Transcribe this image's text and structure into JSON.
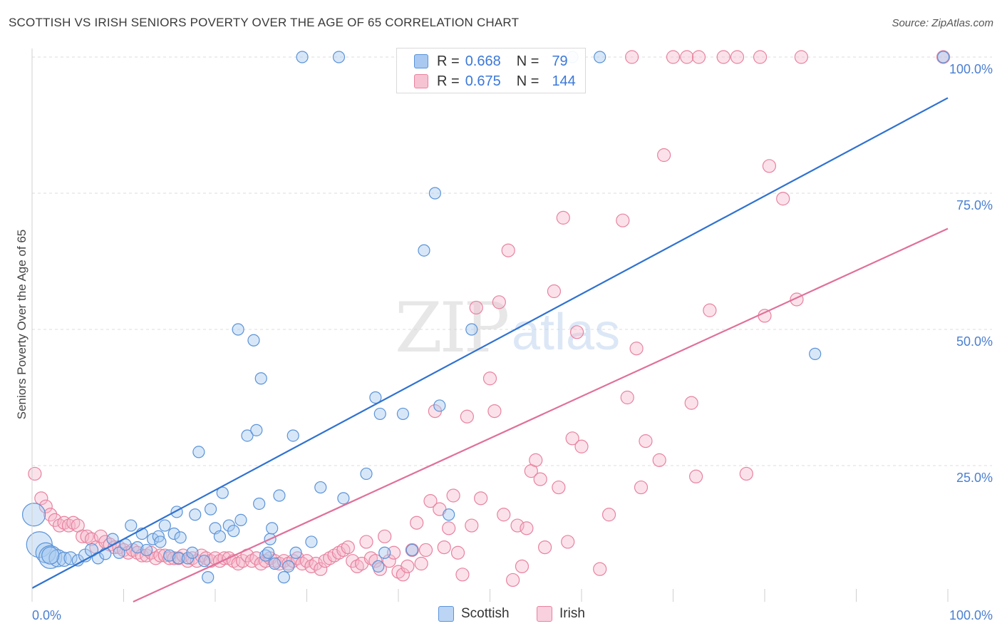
{
  "title": "SCOTTISH VS IRISH SENIORS POVERTY OVER THE AGE OF 65 CORRELATION CHART",
  "source": "Source: ZipAtlas.com",
  "watermark": {
    "zip": "ZIP",
    "atlas": "atlas"
  },
  "colors": {
    "scottish_fill": "#a9c9f0",
    "scottish_stroke": "#5a93d8",
    "scottish_line": "#2f72d0",
    "irish_fill": "#f6b7ca",
    "irish_stroke": "#e8829f",
    "irish_line": "#e0709a",
    "axis_label": "#4a7fd0"
  },
  "legend": {
    "scottish": {
      "r_label": "R =",
      "r_value": "0.668",
      "n_label": "N =",
      "n_value": "79"
    },
    "irish": {
      "r_label": "R =",
      "r_value": "0.675",
      "n_label": "N =",
      "n_value": "144"
    }
  },
  "bottom_legend": {
    "scottish": "Scottish",
    "irish": "Irish"
  },
  "chart_data": {
    "type": "scatter",
    "title": "SCOTTISH VS IRISH SENIORS POVERTY OVER THE AGE OF 65 CORRELATION CHART",
    "xlabel": "",
    "ylabel": "Seniors Poverty Over the Age of 65",
    "xlim": [
      0,
      100
    ],
    "ylim": [
      0,
      102
    ],
    "x_tick_labels": {
      "left": "0.0%",
      "right": "100.0%"
    },
    "y_ticks": [
      25,
      50,
      75,
      100
    ],
    "y_tick_labels": [
      "25.0%",
      "50.0%",
      "75.0%",
      "100.0%"
    ],
    "grid": true,
    "series": [
      {
        "name": "Scottish",
        "trend": {
          "x": [
            0,
            100
          ],
          "y": [
            2.5,
            92.5
          ]
        },
        "points": [
          [
            0.2,
            16.0,
            16
          ],
          [
            0.8,
            10.5,
            18
          ],
          [
            1.5,
            9.0,
            14
          ],
          [
            2.0,
            8.2,
            16
          ],
          [
            2.8,
            8.0,
            12
          ],
          [
            3.5,
            7.8,
            10
          ],
          [
            4.2,
            8.0,
            9
          ],
          [
            5.0,
            7.6,
            8
          ],
          [
            5.8,
            8.5,
            9
          ],
          [
            6.5,
            9.5,
            9
          ],
          [
            7.2,
            8.0,
            8
          ],
          [
            8.0,
            8.8,
            8
          ],
          [
            8.8,
            11.5,
            8
          ],
          [
            9.5,
            9.0,
            8
          ],
          [
            10.2,
            10.5,
            8
          ],
          [
            10.8,
            14.0,
            8
          ],
          [
            11.5,
            10.0,
            8
          ],
          [
            12.0,
            12.5,
            8
          ],
          [
            12.5,
            9.5,
            8
          ],
          [
            13.2,
            11.5,
            8
          ],
          [
            13.8,
            12.0,
            8
          ],
          [
            14.0,
            11.0,
            8
          ],
          [
            14.5,
            14.0,
            8
          ],
          [
            15.0,
            8.5,
            8
          ],
          [
            15.5,
            12.5,
            8
          ],
          [
            16.0,
            8.0,
            8
          ],
          [
            16.2,
            11.8,
            8
          ],
          [
            17.0,
            8.0,
            8
          ],
          [
            17.5,
            9.0,
            8
          ],
          [
            15.8,
            16.5,
            8
          ],
          [
            17.8,
            16.0,
            8
          ],
          [
            18.2,
            27.5,
            8
          ],
          [
            18.8,
            7.5,
            8
          ],
          [
            19.2,
            4.5,
            8
          ],
          [
            19.5,
            17.0,
            8
          ],
          [
            20.0,
            13.5,
            8
          ],
          [
            20.5,
            12.0,
            8
          ],
          [
            20.8,
            20.0,
            8
          ],
          [
            21.5,
            14.0,
            8
          ],
          [
            22.0,
            13.0,
            8
          ],
          [
            22.5,
            50.0,
            8
          ],
          [
            22.8,
            15.0,
            8
          ],
          [
            23.5,
            30.5,
            8
          ],
          [
            24.2,
            48.0,
            8
          ],
          [
            24.5,
            31.5,
            8
          ],
          [
            24.8,
            18.0,
            8
          ],
          [
            25.0,
            41.0,
            8
          ],
          [
            25.5,
            8.5,
            8
          ],
          [
            25.8,
            9.0,
            8
          ],
          [
            26.0,
            11.5,
            8
          ],
          [
            26.2,
            13.5,
            8
          ],
          [
            26.5,
            7.0,
            8
          ],
          [
            27.0,
            19.5,
            8
          ],
          [
            27.5,
            4.5,
            8
          ],
          [
            28.0,
            6.5,
            8
          ],
          [
            28.5,
            30.5,
            8
          ],
          [
            28.8,
            9.0,
            8
          ],
          [
            29.5,
            100.0,
            8
          ],
          [
            30.5,
            11.0,
            8
          ],
          [
            31.5,
            21.0,
            8
          ],
          [
            33.5,
            100.0,
            8
          ],
          [
            34.0,
            19.0,
            8
          ],
          [
            36.5,
            23.5,
            8
          ],
          [
            37.5,
            37.5,
            8
          ],
          [
            37.8,
            6.5,
            8
          ],
          [
            38.0,
            34.5,
            8
          ],
          [
            38.5,
            9.0,
            8
          ],
          [
            40.5,
            34.5,
            8
          ],
          [
            41.5,
            9.5,
            8
          ],
          [
            42.8,
            64.5,
            8
          ],
          [
            44.0,
            75.0,
            8
          ],
          [
            44.5,
            36.0,
            8
          ],
          [
            45.5,
            16.0,
            8
          ],
          [
            48.0,
            50.0,
            8
          ],
          [
            59.0,
            100.0,
            8
          ],
          [
            62.0,
            100.0,
            8
          ],
          [
            85.5,
            45.5,
            8
          ],
          [
            99.5,
            100.0,
            8
          ],
          [
            2.0,
            8.5,
            12
          ]
        ]
      },
      {
        "name": "Irish",
        "trend": {
          "x": [
            0,
            100
          ],
          "y": [
            -8.5,
            68.5
          ]
        },
        "points": [
          [
            0.3,
            23.5,
            9
          ],
          [
            1.0,
            19.0,
            9
          ],
          [
            1.5,
            17.5,
            9
          ],
          [
            2.0,
            16.0,
            9
          ],
          [
            2.5,
            15.0,
            9
          ],
          [
            3.0,
            14.0,
            9
          ],
          [
            3.5,
            14.5,
            9
          ],
          [
            4.0,
            14.0,
            9
          ],
          [
            4.5,
            14.5,
            9
          ],
          [
            5.0,
            14.0,
            9
          ],
          [
            5.5,
            12.0,
            9
          ],
          [
            6.0,
            12.0,
            9
          ],
          [
            6.5,
            11.5,
            9
          ],
          [
            7.0,
            10.0,
            9
          ],
          [
            7.5,
            12.0,
            9
          ],
          [
            8.0,
            11.0,
            9
          ],
          [
            8.5,
            10.5,
            9
          ],
          [
            9.0,
            10.0,
            9
          ],
          [
            9.5,
            10.0,
            9
          ],
          [
            10.0,
            9.5,
            9
          ],
          [
            10.5,
            9.0,
            9
          ],
          [
            11.0,
            9.5,
            9
          ],
          [
            11.5,
            9.0,
            9
          ],
          [
            12.0,
            8.5,
            9
          ],
          [
            12.5,
            8.5,
            9
          ],
          [
            13.0,
            9.0,
            9
          ],
          [
            13.5,
            8.0,
            9
          ],
          [
            14.0,
            8.5,
            9
          ],
          [
            14.5,
            8.5,
            9
          ],
          [
            15.0,
            8.0,
            9
          ],
          [
            15.5,
            8.0,
            9
          ],
          [
            16.0,
            8.0,
            9
          ],
          [
            16.5,
            8.5,
            9
          ],
          [
            17.0,
            7.5,
            9
          ],
          [
            17.5,
            8.0,
            9
          ],
          [
            18.0,
            7.5,
            9
          ],
          [
            18.5,
            8.5,
            9
          ],
          [
            19.0,
            8.0,
            9
          ],
          [
            19.5,
            7.5,
            9
          ],
          [
            20.0,
            8.0,
            9
          ],
          [
            20.5,
            7.5,
            9
          ],
          [
            21.0,
            8.0,
            9
          ],
          [
            21.5,
            8.0,
            9
          ],
          [
            22.0,
            7.5,
            9
          ],
          [
            22.5,
            7.0,
            9
          ],
          [
            23.0,
            7.5,
            9
          ],
          [
            23.5,
            8.5,
            9
          ],
          [
            24.0,
            7.5,
            9
          ],
          [
            24.5,
            8.0,
            9
          ],
          [
            25.0,
            7.0,
            9
          ],
          [
            25.5,
            7.5,
            9
          ],
          [
            26.0,
            8.0,
            9
          ],
          [
            26.5,
            7.5,
            9
          ],
          [
            27.0,
            7.0,
            9
          ],
          [
            27.5,
            7.5,
            9
          ],
          [
            28.0,
            7.0,
            9
          ],
          [
            28.5,
            7.5,
            9
          ],
          [
            29.0,
            8.0,
            9
          ],
          [
            29.5,
            7.0,
            9
          ],
          [
            30.0,
            7.5,
            9
          ],
          [
            30.5,
            6.5,
            9
          ],
          [
            31.0,
            7.0,
            9
          ],
          [
            31.5,
            6.0,
            9
          ],
          [
            32.0,
            7.5,
            9
          ],
          [
            32.5,
            8.0,
            9
          ],
          [
            33.0,
            8.5,
            9
          ],
          [
            33.5,
            9.0,
            9
          ],
          [
            34.0,
            9.5,
            9
          ],
          [
            34.5,
            10.0,
            9
          ],
          [
            35.0,
            7.5,
            9
          ],
          [
            35.5,
            6.5,
            9
          ],
          [
            36.0,
            7.0,
            9
          ],
          [
            36.5,
            11.0,
            9
          ],
          [
            37.0,
            8.0,
            9
          ],
          [
            37.5,
            7.5,
            9
          ],
          [
            38.0,
            6.0,
            9
          ],
          [
            38.5,
            12.0,
            9
          ],
          [
            39.0,
            7.5,
            9
          ],
          [
            39.5,
            9.0,
            9
          ],
          [
            40.0,
            5.5,
            9
          ],
          [
            40.5,
            5.0,
            9
          ],
          [
            41.0,
            6.5,
            9
          ],
          [
            41.5,
            9.5,
            9
          ],
          [
            42.0,
            14.5,
            9
          ],
          [
            42.5,
            7.0,
            9
          ],
          [
            43.0,
            9.5,
            9
          ],
          [
            43.5,
            18.5,
            9
          ],
          [
            44.0,
            35.0,
            9
          ],
          [
            44.5,
            17.0,
            9
          ],
          [
            45.0,
            10.0,
            9
          ],
          [
            45.5,
            13.5,
            9
          ],
          [
            46.0,
            19.5,
            9
          ],
          [
            46.5,
            9.0,
            9
          ],
          [
            47.0,
            5.0,
            9
          ],
          [
            47.5,
            34.0,
            9
          ],
          [
            48.0,
            14.0,
            9
          ],
          [
            48.5,
            54.0,
            9
          ],
          [
            49.0,
            19.0,
            9
          ],
          [
            50.0,
            41.0,
            9
          ],
          [
            50.5,
            35.0,
            9
          ],
          [
            51.0,
            55.0,
            9
          ],
          [
            51.5,
            16.0,
            9
          ],
          [
            52.0,
            64.5,
            9
          ],
          [
            52.5,
            4.0,
            9
          ],
          [
            53.0,
            14.0,
            9
          ],
          [
            53.5,
            6.5,
            9
          ],
          [
            54.0,
            13.5,
            9
          ],
          [
            54.5,
            24.0,
            9
          ],
          [
            55.0,
            26.0,
            9
          ],
          [
            55.5,
            22.5,
            9
          ],
          [
            56.0,
            10.0,
            9
          ],
          [
            57.0,
            57.0,
            9
          ],
          [
            57.5,
            21.0,
            9
          ],
          [
            58.0,
            70.5,
            9
          ],
          [
            58.5,
            11.0,
            9
          ],
          [
            59.0,
            30.0,
            9
          ],
          [
            59.5,
            49.5,
            9
          ],
          [
            60.0,
            28.5,
            9
          ],
          [
            62.0,
            6.0,
            9
          ],
          [
            63.0,
            16.0,
            9
          ],
          [
            64.5,
            70.0,
            9
          ],
          [
            65.0,
            37.5,
            9
          ],
          [
            66.0,
            46.5,
            9
          ],
          [
            66.5,
            21.0,
            9
          ],
          [
            67.0,
            29.5,
            9
          ],
          [
            68.5,
            26.0,
            9
          ],
          [
            69.0,
            82.0,
            9
          ],
          [
            70.0,
            100.0,
            9
          ],
          [
            71.5,
            100.0,
            9
          ],
          [
            72.0,
            36.5,
            9
          ],
          [
            72.5,
            23.0,
            9
          ],
          [
            72.8,
            100.0,
            9
          ],
          [
            74.0,
            53.5,
            9
          ],
          [
            75.5,
            100.0,
            9
          ],
          [
            77.0,
            100.0,
            9
          ],
          [
            78.0,
            23.5,
            9
          ],
          [
            79.5,
            100.0,
            9
          ],
          [
            80.0,
            52.5,
            9
          ],
          [
            80.5,
            80.0,
            9
          ],
          [
            82.0,
            74.0,
            9
          ],
          [
            83.5,
            55.5,
            9
          ],
          [
            84.0,
            100.0,
            9
          ],
          [
            65.5,
            100.0,
            9
          ],
          [
            99.5,
            100.0,
            9
          ]
        ]
      }
    ]
  }
}
